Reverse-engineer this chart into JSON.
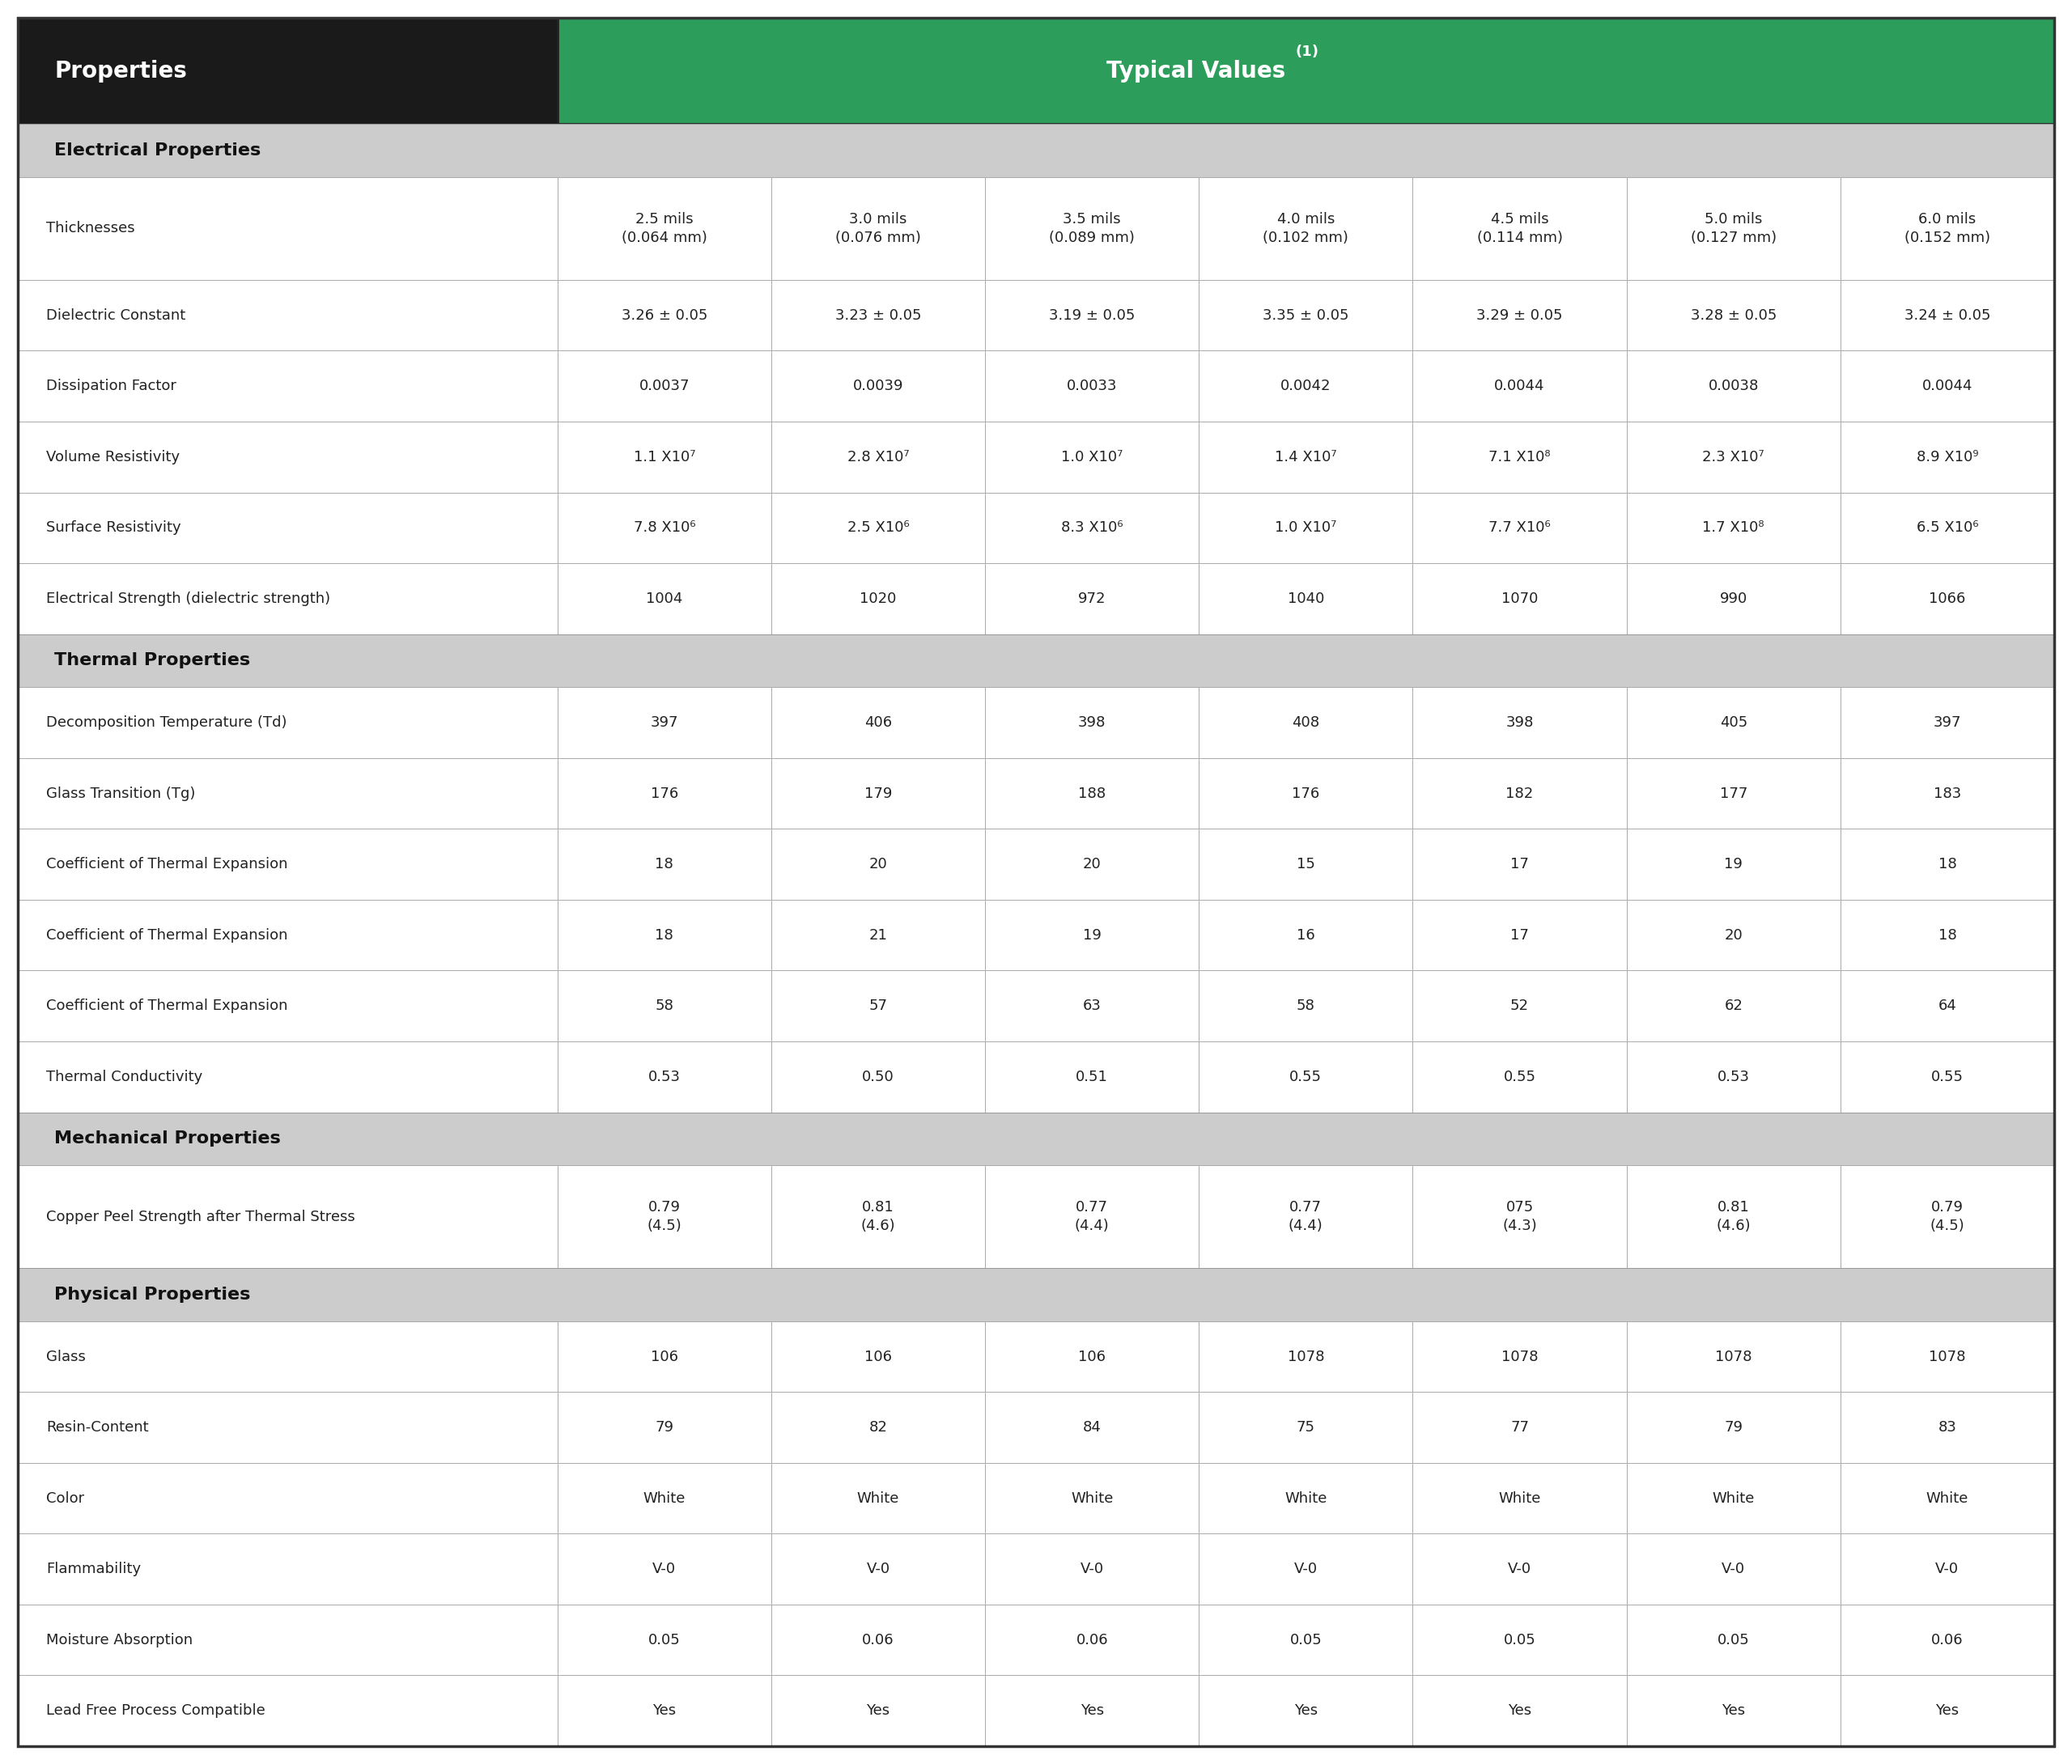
{
  "header_col_label": "Properties",
  "header_val_label": "Typical Values ",
  "header_val_super": "(1)",
  "col_header_bg": "#1a1a1a",
  "col_header_fg": "#ffffff",
  "val_header_bg": "#2d9d5c",
  "val_header_fg": "#ffffff",
  "section_bg": "#cccccc",
  "row_bg_white": "#ffffff",
  "border_color_dark": "#444444",
  "border_color_light": "#aaaaaa",
  "section_text_color": "#111111",
  "body_text_color": "#222222",
  "sections": [
    {
      "name": "Electrical Properties",
      "rows": [
        {
          "property": "Thicknesses",
          "values": [
            "2.5 mils\n(0.064 mm)",
            "3.0 mils\n(0.076 mm)",
            "3.5 mils\n(0.089 mm)",
            "4.0 mils\n(0.102 mm)",
            "4.5 mils\n(0.114 mm)",
            "5.0 mils\n(0.127 mm)",
            "6.0 mils\n(0.152 mm)"
          ],
          "tall": true
        },
        {
          "property": "Dielectric Constant",
          "values": [
            "3.26 ± 0.05",
            "3.23 ± 0.05",
            "3.19 ± 0.05",
            "3.35 ± 0.05",
            "3.29 ± 0.05",
            "3.28 ± 0.05",
            "3.24 ± 0.05"
          ],
          "tall": false
        },
        {
          "property": "Dissipation Factor",
          "values": [
            "0.0037",
            "0.0039",
            "0.0033",
            "0.0042",
            "0.0044",
            "0.0038",
            "0.0044"
          ],
          "tall": false
        },
        {
          "property": "Volume Resistivity",
          "values": [
            "1.1 X10⁷",
            "2.8 X10⁷",
            "1.0 X10⁷",
            "1.4 X10⁷",
            "7.1 X10⁸",
            "2.3 X10⁷",
            "8.9 X10⁹"
          ],
          "tall": false
        },
        {
          "property": "Surface Resistivity",
          "values": [
            "7.8 X10⁶",
            "2.5 X10⁶",
            "8.3 X10⁶",
            "1.0 X10⁷",
            "7.7 X10⁶",
            "1.7 X10⁸",
            "6.5 X10⁶"
          ],
          "tall": false
        },
        {
          "property": "Electrical Strength (dielectric strength)",
          "values": [
            "1004",
            "1020",
            "972",
            "1040",
            "1070",
            "990",
            "1066"
          ],
          "tall": false
        }
      ]
    },
    {
      "name": "Thermal Properties",
      "rows": [
        {
          "property": "Decomposition Temperature (Td)",
          "values": [
            "397",
            "406",
            "398",
            "408",
            "398",
            "405",
            "397"
          ],
          "tall": false
        },
        {
          "property": "Glass Transition (Tg)",
          "values": [
            "176",
            "179",
            "188",
            "176",
            "182",
            "177",
            "183"
          ],
          "tall": false
        },
        {
          "property": "Coefficient of Thermal Expansion",
          "values": [
            "18",
            "20",
            "20",
            "15",
            "17",
            "19",
            "18"
          ],
          "tall": false
        },
        {
          "property": "Coefficient of Thermal Expansion",
          "values": [
            "18",
            "21",
            "19",
            "16",
            "17",
            "20",
            "18"
          ],
          "tall": false
        },
        {
          "property": "Coefficient of Thermal Expansion",
          "values": [
            "58",
            "57",
            "63",
            "58",
            "52",
            "62",
            "64"
          ],
          "tall": false
        },
        {
          "property": "Thermal Conductivity",
          "values": [
            "0.53",
            "0.50",
            "0.51",
            "0.55",
            "0.55",
            "0.53",
            "0.55"
          ],
          "tall": false
        }
      ]
    },
    {
      "name": "Mechanical Properties",
      "rows": [
        {
          "property": "Copper Peel Strength after Thermal Stress",
          "values": [
            "0.79\n(4.5)",
            "0.81\n(4.6)",
            "0.77\n(4.4)",
            "0.77\n(4.4)",
            "075\n(4.3)",
            "0.81\n(4.6)",
            "0.79\n(4.5)"
          ],
          "tall": true
        }
      ]
    },
    {
      "name": "Physical Properties",
      "rows": [
        {
          "property": "Glass",
          "values": [
            "106",
            "106",
            "106",
            "1078",
            "1078",
            "1078",
            "1078"
          ],
          "tall": false
        },
        {
          "property": "Resin-Content",
          "values": [
            "79",
            "82",
            "84",
            "75",
            "77",
            "79",
            "83"
          ],
          "tall": false
        },
        {
          "property": "Color",
          "values": [
            "White",
            "White",
            "White",
            "White",
            "White",
            "White",
            "White"
          ],
          "tall": false
        },
        {
          "property": "Flammability",
          "values": [
            "V-0",
            "V-0",
            "V-0",
            "V-0",
            "V-0",
            "V-0",
            "V-0"
          ],
          "tall": false
        },
        {
          "property": "Moisture Absorption",
          "values": [
            "0.05",
            "0.06",
            "0.06",
            "0.05",
            "0.05",
            "0.05",
            "0.06"
          ],
          "tall": false
        },
        {
          "property": "Lead Free Process Compatible",
          "values": [
            "Yes",
            "Yes",
            "Yes",
            "Yes",
            "Yes",
            "Yes",
            "Yes"
          ],
          "tall": false
        }
      ]
    }
  ]
}
